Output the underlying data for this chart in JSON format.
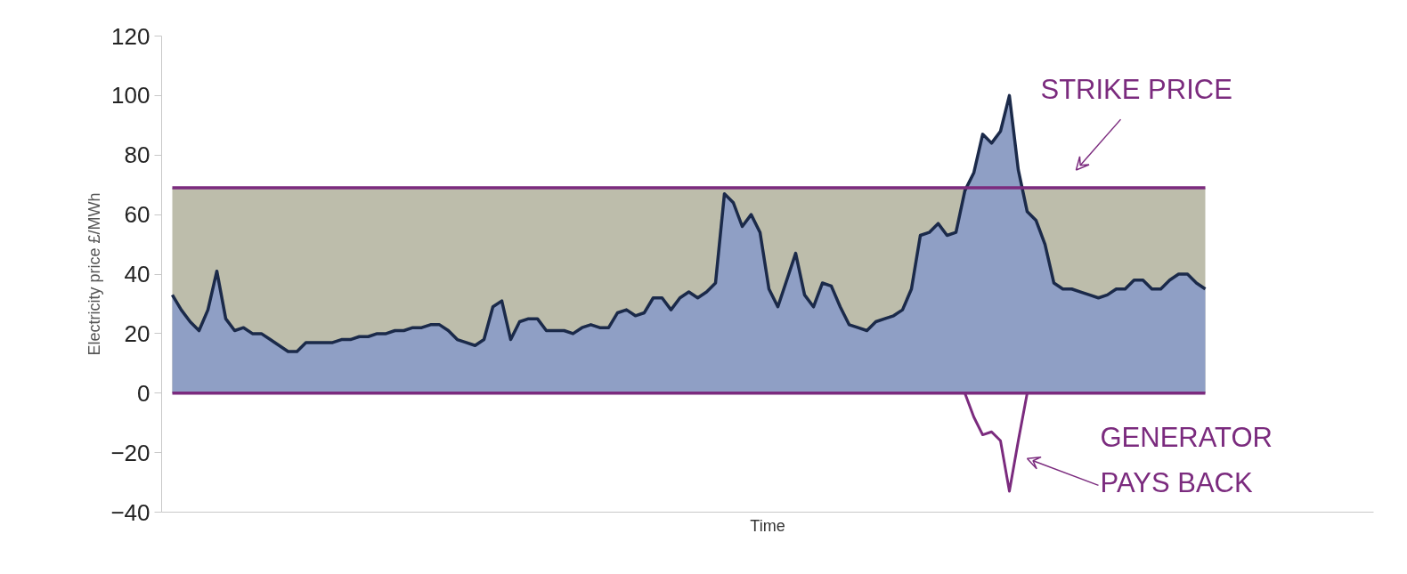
{
  "chart_data": {
    "type": "area",
    "xlabel": "Time",
    "ylabel": "Electricity price £/MWh",
    "categories": [
      null,
      null,
      null,
      null,
      null,
      null,
      null,
      null,
      null,
      null,
      null,
      null,
      null,
      null,
      null,
      null,
      null,
      null,
      null,
      null,
      null,
      null,
      null,
      null,
      null,
      null,
      null,
      null,
      null,
      null,
      null,
      null,
      null,
      null,
      null,
      null,
      null,
      null,
      null,
      null,
      null,
      null,
      null,
      null,
      null,
      null,
      null,
      null,
      null,
      null,
      null,
      null,
      null,
      null,
      null,
      null,
      null,
      null,
      null,
      null,
      null,
      null,
      null,
      null,
      null,
      null,
      null,
      null,
      null,
      null,
      null,
      null,
      null,
      null,
      null,
      null,
      null,
      null,
      null,
      null,
      null,
      null,
      null,
      null,
      null,
      null,
      null,
      null,
      null,
      null,
      null,
      null,
      null,
      null,
      null,
      null,
      null,
      null,
      null,
      null,
      null,
      null,
      null,
      null,
      null,
      null,
      null,
      null,
      null,
      null,
      null,
      null,
      null,
      null,
      null,
      null,
      null
    ],
    "series": [
      {
        "color": "#8f9fc5",
        "values": [
          33,
          28,
          24,
          21,
          28,
          41,
          25,
          21,
          22,
          20,
          20,
          18,
          16,
          14,
          14,
          17,
          17,
          17,
          17,
          18,
          18,
          19,
          19,
          20,
          20,
          21,
          21,
          22,
          22,
          23,
          23,
          21,
          18,
          17,
          16,
          18,
          29,
          31,
          18,
          24,
          25,
          25,
          21,
          21,
          21,
          20,
          22,
          23,
          22,
          22,
          27,
          28,
          26,
          27,
          32,
          32,
          28,
          32,
          34,
          32,
          34,
          37,
          67,
          64,
          56,
          60,
          54,
          35,
          29,
          38,
          47,
          33,
          29,
          37,
          36,
          29,
          23,
          22,
          21,
          24,
          25,
          26,
          28,
          35,
          53,
          54,
          57,
          53,
          54,
          68,
          74,
          87,
          84,
          88,
          100,
          75,
          61,
          58,
          50,
          37,
          35,
          35,
          34,
          33,
          32,
          33,
          35,
          35,
          38,
          38,
          35,
          35,
          38,
          40,
          40,
          37,
          35
        ]
      },
      {
        "type": "line",
        "color": "#7b2b7e",
        "values": [
          null,
          null,
          null,
          null,
          null,
          null,
          null,
          null,
          null,
          null,
          null,
          null,
          null,
          null,
          null,
          null,
          null,
          null,
          null,
          null,
          null,
          null,
          null,
          null,
          null,
          null,
          null,
          null,
          null,
          null,
          null,
          null,
          null,
          null,
          null,
          null,
          null,
          null,
          null,
          null,
          null,
          null,
          null,
          null,
          null,
          null,
          null,
          null,
          null,
          null,
          null,
          null,
          null,
          null,
          null,
          null,
          null,
          null,
          null,
          null,
          null,
          null,
          null,
          null,
          null,
          null,
          null,
          null,
          null,
          null,
          null,
          null,
          null,
          null,
          null,
          null,
          null,
          null,
          null,
          null,
          null,
          null,
          null,
          null,
          null,
          null,
          null,
          null,
          null,
          0,
          -8,
          -14,
          -13,
          -16,
          -33,
          -16,
          0,
          null,
          null,
          null,
          null,
          null,
          null,
          null,
          null,
          null,
          null,
          null,
          null,
          null,
          null,
          null,
          null,
          null,
          null,
          null,
          null
        ]
      }
    ],
    "ylim": [
      -40,
      120
    ],
    "yticks": [
      -40,
      -20,
      0,
      20,
      40,
      60,
      80,
      100,
      120
    ],
    "bands": [
      {
        "axis": "y",
        "from": 0,
        "to": 69,
        "color": "#bdbdab"
      }
    ],
    "ref_lines": [
      {
        "axis": "y",
        "value": 69,
        "label": "STRIKE PRICE",
        "color": "#7b2b7e"
      },
      {
        "axis": "y",
        "value": 0,
        "color": "#7b2b7e"
      }
    ],
    "annotations": [
      "GENERATOR PAYS BACK"
    ],
    "grid": false,
    "tick_labels": "y"
  }
}
